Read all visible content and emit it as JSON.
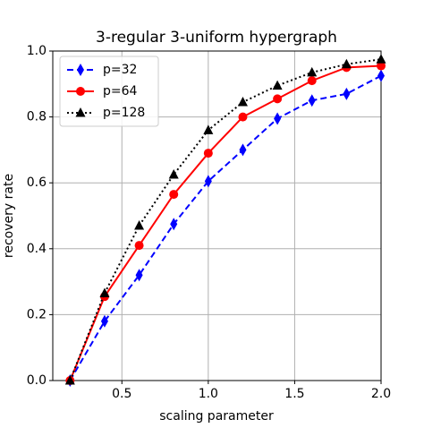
{
  "chart_data": {
    "type": "line",
    "title": "3-regular 3-uniform hypergraph",
    "x_label": "scaling parameter",
    "y_label": "recovery rate",
    "x": [
      0.2,
      0.4,
      0.6,
      0.8,
      1.0,
      1.2,
      1.4,
      1.6,
      1.8,
      2.0
    ],
    "series": [
      {
        "name": "p=32",
        "color": "#0000ff",
        "marker": "diamond",
        "linestyle": "dashed",
        "values": [
          0.0,
          0.18,
          0.32,
          0.475,
          0.605,
          0.7,
          0.795,
          0.85,
          0.87,
          0.925
        ]
      },
      {
        "name": "p=64",
        "color": "#ff0000",
        "marker": "circle",
        "linestyle": "solid",
        "values": [
          0.0,
          0.255,
          0.41,
          0.565,
          0.69,
          0.8,
          0.855,
          0.91,
          0.95,
          0.955
        ]
      },
      {
        "name": "p=128",
        "color": "#000000",
        "marker": "triangle",
        "linestyle": "dotted",
        "values": [
          0.0,
          0.265,
          0.47,
          0.625,
          0.76,
          0.845,
          0.895,
          0.935,
          0.96,
          0.975
        ]
      }
    ],
    "xlim": [
      0.1,
      2.0
    ],
    "xticks": [
      0.5,
      {
        "value": 1.0,
        "label": "1.0"
      },
      1.5,
      {
        "value": 2.0,
        "label": "2.0"
      }
    ],
    "ylim": [
      0,
      1
    ],
    "yticks": [
      {
        "value": 0,
        "label": "0.0"
      },
      0.2,
      0.4,
      0.6,
      0.8,
      {
        "value": 1,
        "label": "1.0"
      }
    ],
    "grid": true,
    "legend": "upper-left"
  }
}
